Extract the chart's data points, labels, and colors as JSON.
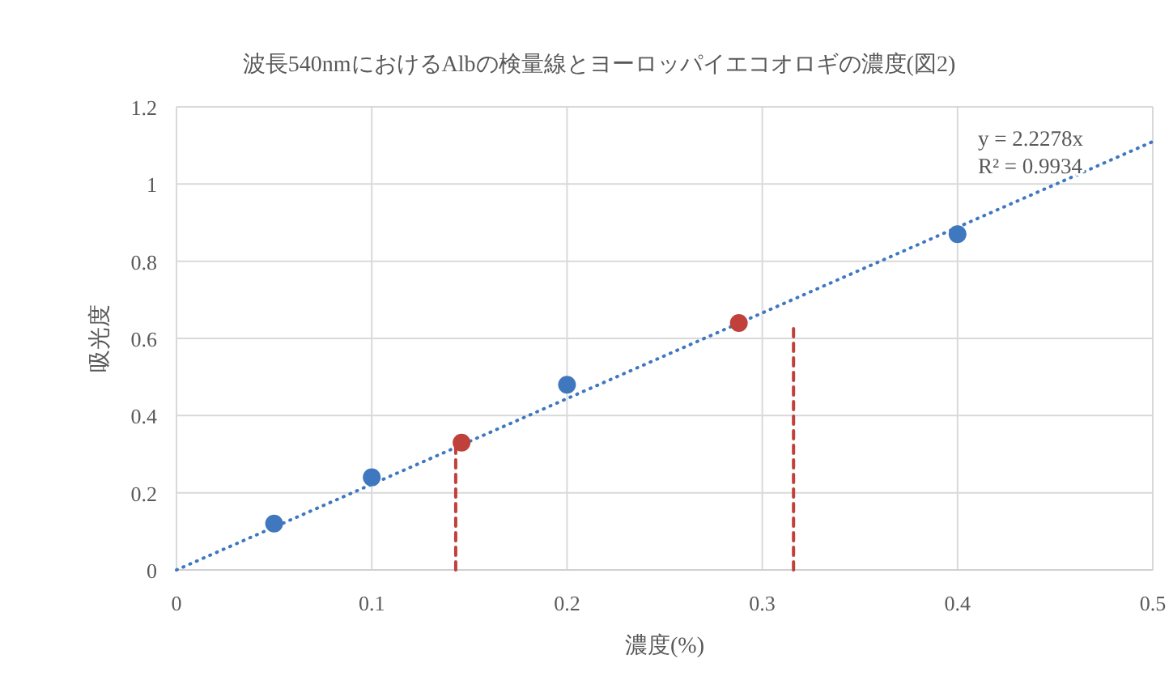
{
  "chart_data": {
    "type": "scatter",
    "title": "波長540nmにおけるAlbの検量線とヨーロッパイエコオロギの濃度(図2)",
    "xlabel": "濃度(%)",
    "ylabel": "吸光度",
    "xlim": [
      0,
      0.5
    ],
    "ylim": [
      0,
      1.2
    ],
    "xticks": [
      0,
      0.1,
      0.2,
      0.3,
      0.4,
      0.5
    ],
    "yticks": [
      0,
      0.2,
      0.4,
      0.6,
      0.8,
      1,
      1.2
    ],
    "grid": true,
    "series": [
      {
        "marker": "circle",
        "color": "#3f78bf",
        "x": [
          0.05,
          0.1,
          0.2,
          0.4
        ],
        "values": [
          0.12,
          0.24,
          0.48,
          0.87
        ]
      },
      {
        "marker": "circle",
        "color": "#c0413b",
        "x": [
          0.146,
          0.288
        ],
        "values": [
          0.33,
          0.64
        ]
      },
      {
        "type": "line",
        "color": "#3f78bf",
        "line_style": "dotted",
        "x": [
          0,
          0.5
        ],
        "values": [
          0,
          1.11
        ]
      },
      {
        "type": "line",
        "color": "#c0413b",
        "line_style": "dashed",
        "x": [
          0.143,
          0.143
        ],
        "values": [
          0,
          0.33
        ]
      },
      {
        "type": "line",
        "color": "#c0413b",
        "line_style": "dashed",
        "x": [
          0.316,
          0.316
        ],
        "values": [
          0,
          0.64
        ]
      }
    ],
    "annotations": [
      "y = 2.2278x",
      "R² = 0.9934"
    ]
  }
}
